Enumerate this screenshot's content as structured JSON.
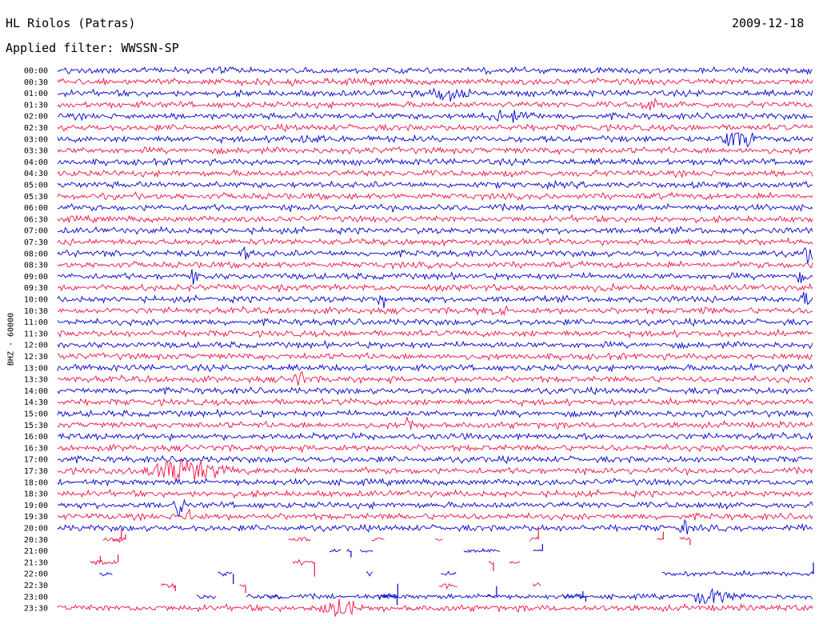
{
  "header": {
    "title": "HL Riolos (Patras)",
    "filter": "Applied filter: WWSSN-SP",
    "date": "2009-12-18",
    "channel": "BHZ - 60000"
  },
  "chart_data": {
    "type": "helicorder",
    "title": "HL Riolos (Patras)",
    "subtitle": "Applied filter: WWSSN-SP",
    "date": "2009-12-18",
    "ylabel": "BHZ - 60000",
    "line_interval_minutes": 30,
    "colors": [
      "#0000cc",
      "#ee1144"
    ],
    "rows": [
      {
        "time": "00:00"
      },
      {
        "time": "00:30"
      },
      {
        "time": "01:00",
        "events": [
          [
            0.52,
            9,
            0.02
          ]
        ]
      },
      {
        "time": "01:30",
        "events": [
          [
            0.795,
            8,
            0.012
          ]
        ]
      },
      {
        "time": "02:00",
        "events": [
          [
            0.6,
            8,
            0.02
          ]
        ]
      },
      {
        "time": "02:30"
      },
      {
        "time": "03:00",
        "events": [
          [
            0.33,
            5,
            0.015
          ],
          [
            0.905,
            10,
            0.02
          ]
        ]
      },
      {
        "time": "03:30"
      },
      {
        "time": "04:00"
      },
      {
        "time": "04:30"
      },
      {
        "time": "05:00"
      },
      {
        "time": "05:30"
      },
      {
        "time": "06:00"
      },
      {
        "time": "06:30"
      },
      {
        "time": "07:00"
      },
      {
        "time": "07:30"
      },
      {
        "time": "08:00",
        "events": [
          [
            0.25,
            11,
            0.004
          ],
          [
            0.415,
            6,
            0.004
          ],
          [
            0.995,
            14,
            0.004
          ]
        ]
      },
      {
        "time": "08:30"
      },
      {
        "time": "09:00",
        "events": [
          [
            0.18,
            10,
            0.004
          ],
          [
            0.985,
            10,
            0.004
          ]
        ]
      },
      {
        "time": "09:30",
        "events": [
          [
            0.725,
            7,
            0.004
          ]
        ]
      },
      {
        "time": "10:00",
        "events": [
          [
            0.43,
            18,
            0.004
          ],
          [
            0.99,
            12,
            0.004
          ]
        ]
      },
      {
        "time": "10:30",
        "events": [
          [
            0.58,
            5,
            0.015
          ],
          [
            0.855,
            5,
            0.004
          ]
        ]
      },
      {
        "time": "11:00"
      },
      {
        "time": "11:30"
      },
      {
        "time": "12:00"
      },
      {
        "time": "12:30",
        "events": [
          [
            0.325,
            4,
            0.004
          ]
        ]
      },
      {
        "time": "13:00",
        "events": [
          [
            0.92,
            6,
            0.004
          ],
          [
            0.955,
            6,
            0.004
          ]
        ]
      },
      {
        "time": "13:30",
        "events": [
          [
            0.32,
            14,
            0.004
          ]
        ]
      },
      {
        "time": "14:00"
      },
      {
        "time": "14:30",
        "events": [
          [
            0.39,
            6,
            0.006
          ]
        ]
      },
      {
        "time": "15:00"
      },
      {
        "time": "15:30",
        "events": [
          [
            0.465,
            12,
            0.004
          ]
        ]
      },
      {
        "time": "16:00"
      },
      {
        "time": "16:30"
      },
      {
        "time": "17:00"
      },
      {
        "time": "17:30",
        "events": [
          [
            0.165,
            14,
            0.035
          ]
        ]
      },
      {
        "time": "18:00"
      },
      {
        "time": "18:30"
      },
      {
        "time": "19:00",
        "events": [
          [
            0.16,
            20,
            0.004
          ]
        ]
      },
      {
        "time": "19:30",
        "events": [
          [
            0.175,
            12,
            0.004
          ]
        ]
      },
      {
        "time": "20:00",
        "events": [
          [
            0.83,
            10,
            0.004
          ]
        ]
      },
      {
        "time": "20:30",
        "gappy": true
      },
      {
        "time": "21:00",
        "gappy": true
      },
      {
        "time": "21:30",
        "gappy": true
      },
      {
        "time": "22:00",
        "gappy": true,
        "segments": [
          [
            0.8,
            1.0
          ]
        ]
      },
      {
        "time": "22:30",
        "gappy": true
      },
      {
        "time": "23:00",
        "gappy": true,
        "segments": [
          [
            0.25,
            1.0
          ]
        ],
        "events": [
          [
            0.865,
            10,
            0.02
          ]
        ]
      },
      {
        "time": "23:30",
        "events": [
          [
            0.37,
            14,
            0.02
          ]
        ]
      }
    ]
  }
}
